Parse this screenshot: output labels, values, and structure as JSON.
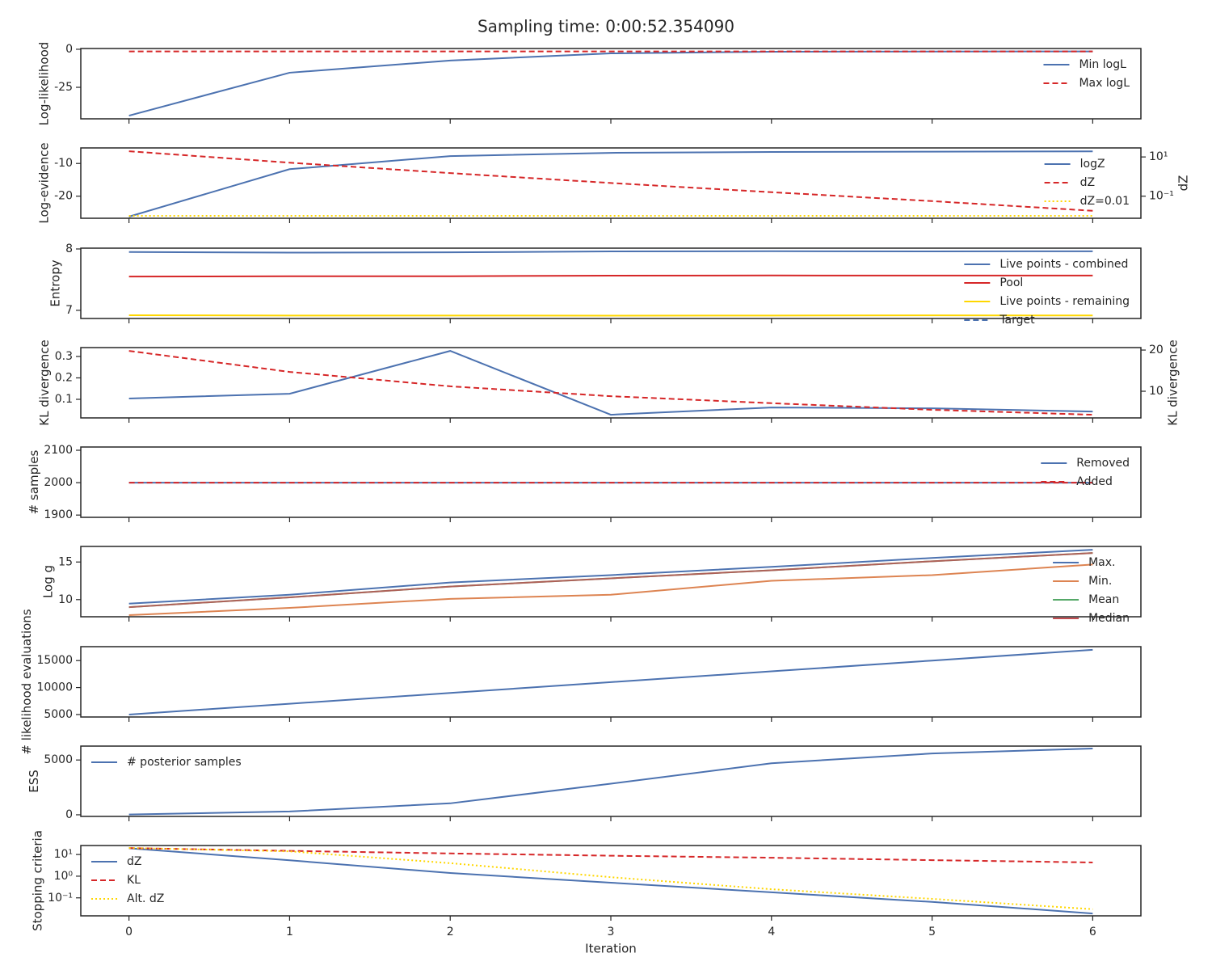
{
  "title": "Sampling time: 0:00:52.354090",
  "chart_data": [
    {
      "type": "line",
      "ylabel": "Log-likelihood",
      "x": [
        0,
        1,
        2,
        3,
        4,
        5,
        6
      ],
      "xlim": [
        -0.3,
        6.3
      ],
      "ylim": [
        -45.7,
        0.5
      ],
      "yticks": [
        0,
        -25
      ],
      "legend": "upper right",
      "series": [
        {
          "name": "Min logL",
          "color": "#4c72b0",
          "linestyle": "solid",
          "values": [
            -43.6,
            -15.4,
            -7.4,
            -2.7,
            -1.6,
            -1.5,
            -1.4
          ]
        },
        {
          "name": "Max logL",
          "color": "#d62728",
          "linestyle": "dashed",
          "values": [
            -1.4,
            -1.4,
            -1.4,
            -1.4,
            -1.4,
            -1.4,
            -1.4
          ]
        }
      ]
    },
    {
      "type": "line",
      "ylabel": "Log-evidence",
      "y2label": "dZ",
      "x": [
        0,
        1,
        2,
        3,
        4,
        5,
        6
      ],
      "xlim": [
        -0.3,
        6.3
      ],
      "ylim": [
        -26.75,
        -5.25
      ],
      "yticks": [
        -10,
        -20
      ],
      "y2lim": [
        0.0075,
        28.8
      ],
      "y2log": true,
      "y2ticks": [
        {
          "value": 10,
          "label": "10¹"
        },
        {
          "value": 0.1,
          "label": "10⁻¹"
        }
      ],
      "legend": "upper right",
      "series": [
        {
          "name": "logZ",
          "color": "#4c72b0",
          "linestyle": "solid",
          "values": [
            -26.25,
            -11.75,
            -7.75,
            -6.75,
            -6.5,
            -6.4,
            -6.3
          ]
        },
        {
          "name": "dZ",
          "color": "#d62728",
          "linestyle": "dashed",
          "axis": "y2",
          "values": [
            19.5,
            5.1,
            1.5,
            0.47,
            0.16,
            0.056,
            0.018
          ]
        },
        {
          "name": "dZ=0.01",
          "color": "#ffd700",
          "linestyle": "dotted",
          "axis": "y2",
          "values": [
            0.01,
            0.01,
            0.01,
            0.01,
            0.01,
            0.01,
            0.01
          ]
        }
      ]
    },
    {
      "type": "line",
      "ylabel": "Entropy",
      "x": [
        0,
        1,
        2,
        3,
        4,
        5,
        6
      ],
      "xlim": [
        -0.3,
        6.3
      ],
      "ylim": [
        6.867,
        8.013
      ],
      "yticks": [
        7,
        8
      ],
      "legend": "upper right",
      "series": [
        {
          "name": "Live points - combined",
          "color": "#4c72b0",
          "linestyle": "solid",
          "values": [
            7.95,
            7.94,
            7.945,
            7.96,
            7.963,
            7.96,
            7.962
          ]
        },
        {
          "name": "Pool",
          "color": "#d62728",
          "linestyle": "solid",
          "values": [
            7.55,
            7.555,
            7.556,
            7.565,
            7.568,
            7.566,
            7.567
          ]
        },
        {
          "name": "Live points - remaining",
          "color": "#ffd700",
          "linestyle": "solid",
          "values": [
            6.92,
            6.915,
            6.915,
            6.913,
            6.915,
            6.918,
            6.916
          ]
        },
        {
          "name": "Target",
          "color": "#4c72b0",
          "linestyle": "dashed",
          "values": [
            null,
            null,
            null,
            null,
            null,
            null,
            null
          ]
        }
      ]
    },
    {
      "type": "line",
      "ylabel": "KL divergence",
      "y2label": "KL divergence",
      "x": [
        0,
        1,
        2,
        3,
        4,
        5,
        6
      ],
      "xlim": [
        -0.3,
        6.3
      ],
      "ylim": [
        0.0132,
        0.3415
      ],
      "yticks": [
        0.1,
        0.2,
        0.3
      ],
      "y2lim": [
        3.53,
        20.6
      ],
      "y2ticks": [
        10,
        20
      ],
      "series": [
        {
          "name": "KL",
          "color": "#4c72b0",
          "linestyle": "solid",
          "values": [
            0.104,
            0.126,
            0.326,
            0.028,
            0.062,
            0.058,
            0.043
          ]
        },
        {
          "name": "KL",
          "color": "#d62728",
          "linestyle": "dashed",
          "axis": "y2",
          "values": [
            19.8,
            14.7,
            11.2,
            8.8,
            7.1,
            5.5,
            4.3
          ]
        }
      ]
    },
    {
      "type": "line",
      "ylabel": "# samples",
      "x": [
        0,
        1,
        2,
        3,
        4,
        5,
        6
      ],
      "xlim": [
        -0.3,
        6.3
      ],
      "ylim": [
        1893,
        2110
      ],
      "yticks": [
        1900,
        2000,
        2100
      ],
      "legend": "upper right",
      "series": [
        {
          "name": "Removed",
          "color": "#4c72b0",
          "linestyle": "solid",
          "values": [
            2000,
            2000,
            2000,
            2000,
            2000,
            2000,
            2000
          ]
        },
        {
          "name": "Added",
          "color": "#d62728",
          "linestyle": "dashed",
          "values": [
            2000,
            2000,
            2000,
            2000,
            2000,
            2000,
            2000
          ]
        }
      ]
    },
    {
      "type": "line",
      "ylabel": "Log g",
      "x": [
        0,
        1,
        2,
        3,
        4,
        5,
        6
      ],
      "xlim": [
        -0.3,
        6.3
      ],
      "ylim": [
        7.72,
        17.07
      ],
      "yticks": [
        10,
        15
      ],
      "legend": "upper right",
      "series": [
        {
          "name": "Max.",
          "color": "#4c72b0",
          "linestyle": "solid",
          "values": [
            9.46,
            10.65,
            12.28,
            13.26,
            14.35,
            15.54,
            16.63
          ]
        },
        {
          "name": "Min.",
          "color": "#dd8452",
          "linestyle": "solid",
          "values": [
            7.93,
            8.9,
            10.1,
            10.65,
            12.5,
            13.26,
            14.67
          ]
        },
        {
          "name": "Mean",
          "color": "#55a868",
          "linestyle": "solid",
          "values": [
            9.0,
            10.3,
            11.74,
            12.83,
            13.9,
            15.1,
            16.2
          ]
        },
        {
          "name": "Median",
          "color": "#c44e52",
          "linestyle": "solid",
          "alpha": 0.8,
          "values": [
            9.0,
            10.3,
            11.74,
            12.83,
            13.9,
            15.1,
            16.2
          ]
        }
      ]
    },
    {
      "type": "line",
      "ylabel": "# likelihood evaluations",
      "x": [
        0,
        1,
        2,
        3,
        4,
        5,
        6
      ],
      "xlim": [
        -0.3,
        6.3
      ],
      "ylim": [
        4545,
        17576
      ],
      "yticks": [
        5000,
        10000,
        15000
      ],
      "series": [
        {
          "name": "Likelihood evaluations",
          "color": "#4c72b0",
          "linestyle": "solid",
          "values": [
            5000,
            7000,
            9000,
            11000,
            13000,
            15000,
            17000
          ]
        }
      ]
    },
    {
      "type": "line",
      "ylabel": "ESS",
      "x": [
        0,
        1,
        2,
        3,
        4,
        5,
        6
      ],
      "xlim": [
        -0.3,
        6.3
      ],
      "ylim": [
        -149,
        6269
      ],
      "yticks": [
        0,
        5000
      ],
      "legend": "upper left",
      "series": [
        {
          "name": "# posterior samples",
          "color": "#4c72b0",
          "linestyle": "solid",
          "values": [
            30,
            300,
            1045,
            2836,
            4701,
            5597,
            6045
          ]
        }
      ]
    },
    {
      "type": "line",
      "ylabel": "Stopping criteria",
      "xlabel": "Iteration",
      "x": [
        0,
        1,
        2,
        3,
        4,
        5,
        6
      ],
      "xlim": [
        -0.3,
        6.3
      ],
      "xticks": [
        0,
        1,
        2,
        3,
        4,
        5,
        6
      ],
      "ylim": [
        0.0148,
        26.0
      ],
      "ylog": true,
      "yticks": [
        {
          "value": 0.1,
          "label": "10⁻¹"
        },
        {
          "value": 1,
          "label": "10⁰"
        },
        {
          "value": 10,
          "label": "10¹"
        }
      ],
      "legend": "upper left",
      "series": [
        {
          "name": "dZ",
          "color": "#4c72b0",
          "linestyle": "solid",
          "values": [
            19.5,
            5.4,
            1.4,
            0.5,
            0.18,
            0.065,
            0.019
          ]
        },
        {
          "name": "KL",
          "color": "#d62728",
          "linestyle": "dashed",
          "values": [
            19.8,
            14.7,
            11.2,
            8.8,
            7.1,
            5.5,
            4.3
          ]
        },
        {
          "name": "Alt. dZ",
          "color": "#ffd700",
          "linestyle": "dotted",
          "values": [
            20,
            14,
            4,
            0.9,
            0.25,
            0.09,
            0.03
          ]
        }
      ]
    }
  ]
}
